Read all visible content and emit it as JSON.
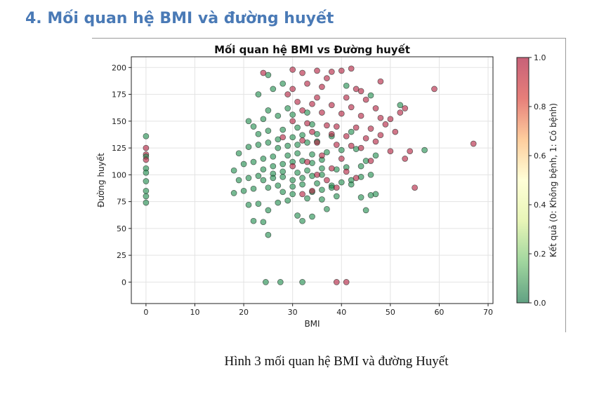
{
  "heading": "4. Mối quan hệ BMI và đường huyết",
  "caption": "Hình 3 mối quan hệ BMI và đường Huyết",
  "chart_data": {
    "type": "scatter",
    "title": "Mối quan hệ BMI vs Đường huyết",
    "xlabel": "BMI",
    "ylabel": "Đường huyết",
    "xlim": [
      -3,
      71
    ],
    "ylim": [
      -20,
      210
    ],
    "xticks": [
      0,
      10,
      20,
      30,
      40,
      50,
      60,
      70
    ],
    "yticks": [
      0,
      25,
      50,
      75,
      100,
      125,
      150,
      175,
      200
    ],
    "grid": true,
    "colorbar": {
      "label": "Kết quả (0: Không bệnh, 1: Có bệnh)",
      "ticks": [
        "0.0",
        "0.2",
        "0.4",
        "0.6",
        "0.8",
        "1.0"
      ],
      "colormap": "RdYlGn_r",
      "colors": [
        "#006837",
        "#66bd63",
        "#d9ef8b",
        "#ffffbf",
        "#fdae61",
        "#d73027",
        "#a50026"
      ]
    },
    "series_colors": {
      "0": "#1a8a4a",
      "1": "#b01a3a"
    },
    "points": [
      [
        0,
        136,
        0
      ],
      [
        0,
        125,
        1
      ],
      [
        0,
        119,
        1
      ],
      [
        0,
        117,
        0
      ],
      [
        0,
        114,
        1
      ],
      [
        0,
        106,
        0
      ],
      [
        0,
        102,
        0
      ],
      [
        0,
        94,
        0
      ],
      [
        0,
        85,
        0
      ],
      [
        0,
        80,
        0
      ],
      [
        0,
        74,
        0
      ],
      [
        24.5,
        0,
        0
      ],
      [
        27.5,
        0,
        0
      ],
      [
        32,
        0,
        0
      ],
      [
        39,
        0,
        1
      ],
      [
        41,
        0,
        1
      ],
      [
        25,
        44,
        0
      ],
      [
        24,
        56,
        0
      ],
      [
        22,
        57,
        0
      ],
      [
        32,
        57,
        0
      ],
      [
        31,
        62,
        0
      ],
      [
        34,
        61,
        0
      ],
      [
        45,
        67,
        0
      ],
      [
        37,
        68,
        0
      ],
      [
        25,
        67,
        0
      ],
      [
        21,
        72,
        0
      ],
      [
        23,
        73,
        0
      ],
      [
        27,
        74,
        0
      ],
      [
        29,
        76,
        0
      ],
      [
        33,
        78,
        0
      ],
      [
        36,
        77,
        0
      ],
      [
        39,
        80,
        0
      ],
      [
        44,
        79,
        0
      ],
      [
        46,
        81,
        0
      ],
      [
        47,
        82,
        0
      ],
      [
        18,
        83,
        0
      ],
      [
        20,
        85,
        0
      ],
      [
        22,
        87,
        0
      ],
      [
        25,
        88,
        0
      ],
      [
        27,
        90,
        0
      ],
      [
        30,
        89,
        0
      ],
      [
        32,
        91,
        0
      ],
      [
        35,
        92,
        0
      ],
      [
        38,
        90,
        0
      ],
      [
        40,
        93,
        0
      ],
      [
        42,
        95,
        0
      ],
      [
        19,
        95,
        0
      ],
      [
        21,
        97,
        0
      ],
      [
        23,
        99,
        0
      ],
      [
        26,
        101,
        0
      ],
      [
        28,
        103,
        0
      ],
      [
        31,
        102,
        0
      ],
      [
        33,
        104,
        0
      ],
      [
        36,
        106,
        0
      ],
      [
        39,
        105,
        0
      ],
      [
        41,
        107,
        0
      ],
      [
        44,
        108,
        0
      ],
      [
        18,
        104,
        0
      ],
      [
        20,
        110,
        0
      ],
      [
        22,
        112,
        0
      ],
      [
        24,
        115,
        0
      ],
      [
        26,
        117,
        0
      ],
      [
        29,
        118,
        0
      ],
      [
        31,
        120,
        0
      ],
      [
        34,
        119,
        0
      ],
      [
        37,
        121,
        0
      ],
      [
        40,
        123,
        0
      ],
      [
        43,
        124,
        0
      ],
      [
        19,
        120,
        0
      ],
      [
        21,
        126,
        0
      ],
      [
        23,
        128,
        0
      ],
      [
        25,
        130,
        0
      ],
      [
        27,
        133,
        0
      ],
      [
        30,
        135,
        0
      ],
      [
        32,
        137,
        0
      ],
      [
        35,
        138,
        0
      ],
      [
        38,
        136,
        0
      ],
      [
        42,
        140,
        0
      ],
      [
        21,
        150,
        0
      ],
      [
        24,
        152,
        0
      ],
      [
        27,
        155,
        0
      ],
      [
        30,
        156,
        0
      ],
      [
        33,
        158,
        0
      ],
      [
        22,
        145,
        0
      ],
      [
        25,
        160,
        0
      ],
      [
        29,
        162,
        0
      ],
      [
        23,
        175,
        0
      ],
      [
        26,
        180,
        0
      ],
      [
        28,
        185,
        0
      ],
      [
        25,
        193,
        0
      ],
      [
        46,
        174,
        0
      ],
      [
        41,
        183,
        0
      ],
      [
        52,
        165,
        0
      ],
      [
        57,
        123,
        0
      ],
      [
        24,
        95,
        0
      ],
      [
        26,
        97,
        0
      ],
      [
        28,
        98,
        0
      ],
      [
        30,
        95,
        0
      ],
      [
        32,
        97,
        0
      ],
      [
        34,
        99,
        0
      ],
      [
        36,
        100,
        0
      ],
      [
        28,
        110,
        0
      ],
      [
        30,
        112,
        0
      ],
      [
        32,
        113,
        0
      ],
      [
        34,
        111,
        0
      ],
      [
        36,
        114,
        0
      ],
      [
        27,
        125,
        0
      ],
      [
        29,
        127,
        0
      ],
      [
        31,
        128,
        0
      ],
      [
        33,
        130,
        0
      ],
      [
        35,
        131,
        0
      ],
      [
        24,
        105,
        0
      ],
      [
        26,
        108,
        0
      ],
      [
        28,
        84,
        0
      ],
      [
        30,
        82,
        0
      ],
      [
        34,
        84,
        0
      ],
      [
        36,
        86,
        0
      ],
      [
        38,
        88,
        0
      ],
      [
        42,
        91,
        0
      ],
      [
        44,
        98,
        0
      ],
      [
        46,
        100,
        0
      ],
      [
        45,
        113,
        0
      ],
      [
        47,
        118,
        0
      ],
      [
        23,
        138,
        0
      ],
      [
        25,
        141,
        0
      ],
      [
        28,
        142,
        0
      ],
      [
        31,
        144,
        0
      ],
      [
        34,
        147,
        0
      ],
      [
        30,
        198,
        1
      ],
      [
        32,
        195,
        1
      ],
      [
        35,
        197,
        1
      ],
      [
        38,
        196,
        1
      ],
      [
        42,
        199,
        1
      ],
      [
        40,
        197,
        1
      ],
      [
        24,
        195,
        1
      ],
      [
        37,
        190,
        1
      ],
      [
        48,
        187,
        1
      ],
      [
        33,
        185,
        1
      ],
      [
        36,
        182,
        1
      ],
      [
        30,
        180,
        1
      ],
      [
        43,
        180,
        1
      ],
      [
        44,
        178,
        1
      ],
      [
        29,
        175,
        1
      ],
      [
        35,
        172,
        1
      ],
      [
        41,
        172,
        1
      ],
      [
        45,
        170,
        1
      ],
      [
        31,
        168,
        1
      ],
      [
        34,
        166,
        1
      ],
      [
        38,
        165,
        1
      ],
      [
        42,
        163,
        1
      ],
      [
        47,
        162,
        1
      ],
      [
        53,
        162,
        1
      ],
      [
        52,
        158,
        1
      ],
      [
        32,
        160,
        1
      ],
      [
        36,
        158,
        1
      ],
      [
        40,
        157,
        1
      ],
      [
        44,
        155,
        1
      ],
      [
        48,
        153,
        1
      ],
      [
        50,
        152,
        1
      ],
      [
        30,
        150,
        1
      ],
      [
        33,
        148,
        1
      ],
      [
        37,
        146,
        1
      ],
      [
        39,
        145,
        1
      ],
      [
        43,
        144,
        1
      ],
      [
        46,
        143,
        1
      ],
      [
        49,
        147,
        1
      ],
      [
        34,
        140,
        1
      ],
      [
        38,
        138,
        1
      ],
      [
        41,
        136,
        1
      ],
      [
        45,
        134,
        1
      ],
      [
        48,
        137,
        1
      ],
      [
        51,
        140,
        1
      ],
      [
        28,
        135,
        1
      ],
      [
        32,
        132,
        1
      ],
      [
        35,
        130,
        1
      ],
      [
        39,
        128,
        1
      ],
      [
        42,
        127,
        1
      ],
      [
        44,
        125,
        1
      ],
      [
        47,
        131,
        1
      ],
      [
        50,
        122,
        1
      ],
      [
        54,
        122,
        1
      ],
      [
        46,
        113,
        1
      ],
      [
        53,
        115,
        1
      ],
      [
        36,
        118,
        1
      ],
      [
        40,
        115,
        1
      ],
      [
        33,
        112,
        1
      ],
      [
        30,
        108,
        1
      ],
      [
        38,
        106,
        1
      ],
      [
        41,
        103,
        1
      ],
      [
        35,
        100,
        1
      ],
      [
        43,
        97,
        1
      ],
      [
        37,
        95,
        1
      ],
      [
        39,
        88,
        1
      ],
      [
        34,
        85,
        1
      ],
      [
        32,
        82,
        1
      ],
      [
        55,
        88,
        1
      ],
      [
        59,
        180,
        1
      ],
      [
        67,
        129,
        1
      ]
    ]
  }
}
